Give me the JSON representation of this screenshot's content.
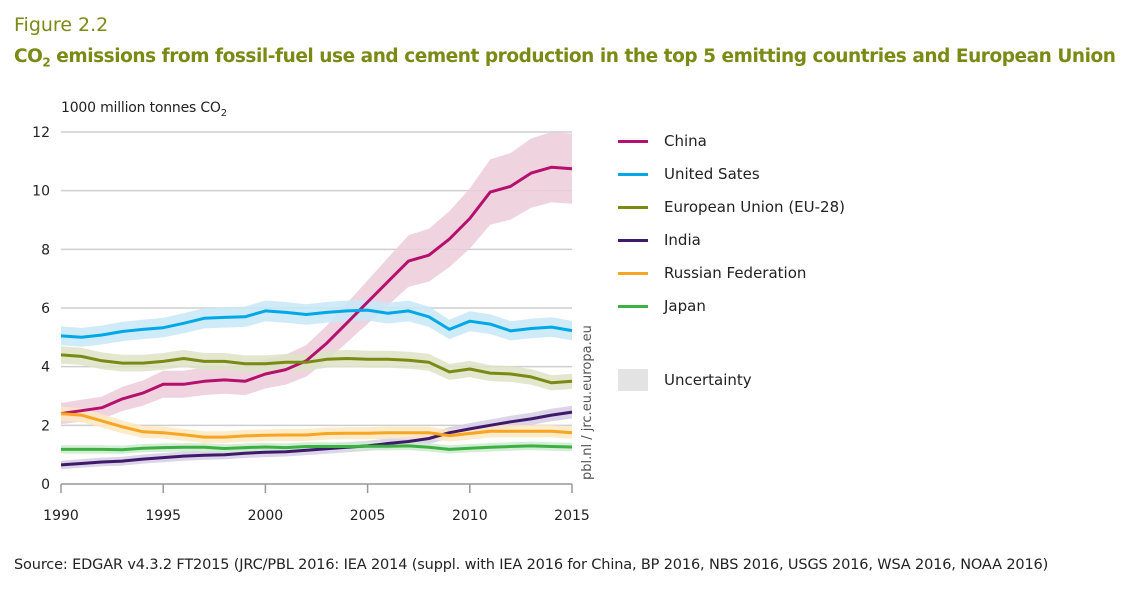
{
  "figure_label": "Figure 2.2",
  "title_prefix": "CO",
  "title_sub": "2",
  "title_rest": " emissions from fossil-fuel use and cement production in the top 5 emitting countries and European Union",
  "unit_prefix": "1000 million tonnes CO",
  "unit_sub": "2",
  "watermark": "pbl.nl / jrc.eu.europa.eu",
  "source": "Source: EDGAR v4.3.2 FT2015 (JRC/PBL 2016: IEA 2014 (suppl. with IEA 2016 for China, BP 2016, NBS 2016, USGS 2016, WSA 2016, NOAA 2016)",
  "uncertainty_label": "Uncertainty",
  "chart_data": {
    "type": "line",
    "title": "CO2 emissions from fossil-fuel use and cement production in the top 5 emitting countries and European Union",
    "xlabel": "",
    "ylabel": "1000 million tonnes CO2",
    "xlim": [
      1990,
      2015
    ],
    "ylim": [
      0,
      12
    ],
    "yticks": [
      0,
      2,
      4,
      6,
      8,
      10,
      12
    ],
    "xticks": [
      1990,
      1995,
      2000,
      2005,
      2010,
      2015
    ],
    "grid": true,
    "legend_position": "right",
    "x": [
      1990,
      1991,
      1992,
      1993,
      1994,
      1995,
      1996,
      1997,
      1998,
      1999,
      2000,
      2001,
      2002,
      2003,
      2004,
      2005,
      2006,
      2007,
      2008,
      2009,
      2010,
      2011,
      2012,
      2013,
      2014,
      2015
    ],
    "series": [
      {
        "name": "China",
        "color": "#b5106e",
        "band_color": "#ecccdb",
        "uncertainty": 0.1,
        "values": [
          2.4,
          2.5,
          2.6,
          2.9,
          3.1,
          3.4,
          3.4,
          3.5,
          3.55,
          3.5,
          3.75,
          3.9,
          4.2,
          4.8,
          5.5,
          6.2,
          6.9,
          7.6,
          7.8,
          8.35,
          9.05,
          9.95,
          10.15,
          10.6,
          10.8,
          10.75
        ]
      },
      {
        "name": "United Sates",
        "color": "#00a8e6",
        "band_color": "#c7e8f7",
        "uncertainty": 0.04,
        "values": [
          5.05,
          5.0,
          5.08,
          5.2,
          5.27,
          5.33,
          5.48,
          5.65,
          5.68,
          5.7,
          5.9,
          5.85,
          5.78,
          5.85,
          5.9,
          5.93,
          5.82,
          5.9,
          5.7,
          5.27,
          5.55,
          5.45,
          5.22,
          5.3,
          5.35,
          5.23
        ]
      },
      {
        "name": "European Union (EU-28)",
        "color": "#7a8a14",
        "band_color": "#dde3c6",
        "uncertainty": 0.04,
        "values": [
          4.4,
          4.35,
          4.2,
          4.12,
          4.12,
          4.18,
          4.28,
          4.18,
          4.18,
          4.1,
          4.1,
          4.15,
          4.15,
          4.25,
          4.28,
          4.25,
          4.25,
          4.22,
          4.15,
          3.82,
          3.92,
          3.78,
          3.75,
          3.65,
          3.45,
          3.5
        ]
      },
      {
        "name": "India",
        "color": "#3f1a6b",
        "band_color": "#d6cce4",
        "uncertainty": 0.04,
        "values": [
          0.65,
          0.7,
          0.75,
          0.78,
          0.85,
          0.9,
          0.95,
          0.98,
          1.0,
          1.05,
          1.08,
          1.1,
          1.15,
          1.2,
          1.25,
          1.3,
          1.38,
          1.45,
          1.55,
          1.75,
          1.88,
          2.0,
          2.12,
          2.22,
          2.35,
          2.45
        ]
      },
      {
        "name": "Russian Federation",
        "color": "#f6a623",
        "band_color": "#fde7c1",
        "uncertainty": 0.05,
        "values": [
          2.4,
          2.35,
          2.15,
          1.95,
          1.78,
          1.75,
          1.68,
          1.6,
          1.6,
          1.64,
          1.66,
          1.67,
          1.67,
          1.72,
          1.73,
          1.73,
          1.75,
          1.75,
          1.75,
          1.65,
          1.72,
          1.8,
          1.8,
          1.8,
          1.8,
          1.75
        ]
      },
      {
        "name": "Japan",
        "color": "#3cb043",
        "band_color": "#cdebcf",
        "uncertainty": 0.02,
        "values": [
          1.18,
          1.18,
          1.18,
          1.17,
          1.22,
          1.24,
          1.25,
          1.25,
          1.21,
          1.24,
          1.26,
          1.24,
          1.28,
          1.28,
          1.28,
          1.29,
          1.29,
          1.3,
          1.25,
          1.18,
          1.22,
          1.25,
          1.28,
          1.3,
          1.28,
          1.26
        ]
      }
    ]
  }
}
